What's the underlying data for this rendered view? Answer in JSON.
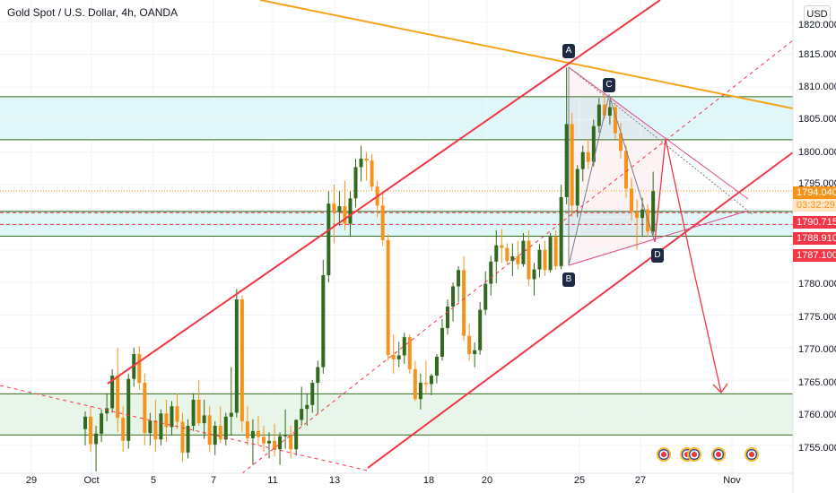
{
  "header": {
    "title": "Gold Spot / U.S. Dollar, 4h, OANDA",
    "currency_button": "USD"
  },
  "price_axis": {
    "ticks": [
      "1820.000",
      "1815.000",
      "1810.000",
      "1805.000",
      "1800.000",
      "1795.000",
      "1780.000",
      "1775.000",
      "1770.000",
      "1765.000",
      "1760.000",
      "1755.000"
    ]
  },
  "price_labels": {
    "last_price": "1794.040",
    "countdown": "03:32:29",
    "level_1": "1790.715",
    "level_2": "1788.910",
    "level_3": "1787.100"
  },
  "time_axis": {
    "ticks": [
      "29",
      "Oct",
      "5",
      "7",
      "11",
      "13",
      "18",
      "20",
      "25",
      "27",
      "Nov"
    ]
  },
  "pattern_points": [
    "A",
    "B",
    "C",
    "D"
  ],
  "colors": {
    "up": "#33691e",
    "down": "#f7931a",
    "red_line": "#f23645",
    "orange_line": "#f7a21b",
    "zone_green": "#e8f5e9",
    "zone_cyan": "#e0f7fa",
    "level_line": "#33691e"
  },
  "icons": [
    "us-flag-event-icon",
    "us-flag-event-icon",
    "us-flag-event-icon",
    "us-flag-event-icon",
    "us-flag-event-icon"
  ],
  "chart_data": {
    "type": "candlestick",
    "symbol": "Gold Spot / U.S. Dollar, 4h, OANDA",
    "ylim": [
      1753,
      1822
    ],
    "candles": [
      [
        1757.5,
        1760.2,
        1755.0,
        1759.4
      ],
      [
        1759.4,
        1761.0,
        1754.0,
        1755.2
      ],
      [
        1755.2,
        1758.0,
        1751.0,
        1756.8
      ],
      [
        1756.8,
        1760.5,
        1755.5,
        1759.9
      ],
      [
        1759.9,
        1763.0,
        1758.7,
        1760.7
      ],
      [
        1760.7,
        1766.7,
        1760.0,
        1765.7
      ],
      [
        1765.7,
        1770.0,
        1757.0,
        1759.2
      ],
      [
        1759.2,
        1761.0,
        1754.0,
        1755.7
      ],
      [
        1755.7,
        1766.0,
        1754.5,
        1765.2
      ],
      [
        1765.2,
        1770.0,
        1764.0,
        1769.0
      ],
      [
        1769.0,
        1770.2,
        1763.5,
        1764.6
      ],
      [
        1764.6,
        1766.0,
        1755.0,
        1756.9
      ],
      [
        1756.9,
        1760.0,
        1755.0,
        1758.8
      ],
      [
        1758.8,
        1762.0,
        1754.0,
        1755.9
      ],
      [
        1755.9,
        1760.5,
        1755.0,
        1759.9
      ],
      [
        1759.9,
        1762.0,
        1755.5,
        1757.8
      ],
      [
        1757.8,
        1761.8,
        1756.5,
        1761.0
      ],
      [
        1761.0,
        1763.0,
        1757.5,
        1758.6
      ],
      [
        1758.6,
        1760.0,
        1752.5,
        1753.9
      ],
      [
        1753.9,
        1759.0,
        1753.0,
        1758.0
      ],
      [
        1758.0,
        1763.0,
        1757.2,
        1762.0
      ],
      [
        1762.0,
        1765.0,
        1758.0,
        1758.4
      ],
      [
        1758.4,
        1762.0,
        1756.0,
        1759.6
      ],
      [
        1759.6,
        1761.0,
        1754.0,
        1755.1
      ],
      [
        1755.1,
        1758.7,
        1753.5,
        1758.0
      ],
      [
        1758.0,
        1761.0,
        1755.3,
        1755.9
      ],
      [
        1755.9,
        1760.0,
        1755.0,
        1759.4
      ],
      [
        1759.4,
        1767.0,
        1756.5,
        1760.0
      ],
      [
        1760.0,
        1779.0,
        1759.3,
        1777.4
      ],
      [
        1777.4,
        1778.0,
        1757.0,
        1758.7
      ],
      [
        1758.7,
        1761.0,
        1755.0,
        1756.1
      ],
      [
        1756.1,
        1759.0,
        1752.0,
        1757.2
      ],
      [
        1757.2,
        1759.5,
        1755.0,
        1756.3
      ],
      [
        1756.3,
        1758.0,
        1754.0,
        1755.3
      ],
      [
        1755.3,
        1757.0,
        1753.0,
        1755.7
      ],
      [
        1755.7,
        1758.3,
        1753.3,
        1754.4
      ],
      [
        1754.4,
        1757.0,
        1752.0,
        1756.4
      ],
      [
        1756.4,
        1760.5,
        1754.5,
        1756.6
      ],
      [
        1756.6,
        1758.0,
        1753.0,
        1754.4
      ],
      [
        1754.4,
        1759.0,
        1753.4,
        1758.9
      ],
      [
        1758.9,
        1764.0,
        1758.0,
        1760.6
      ],
      [
        1760.6,
        1763.0,
        1758.0,
        1761.2
      ],
      [
        1761.2,
        1765.0,
        1760.0,
        1764.6
      ],
      [
        1764.6,
        1768.0,
        1759.8,
        1767.0
      ],
      [
        1767.0,
        1783.5,
        1766.0,
        1781.1
      ],
      [
        1781.1,
        1794.0,
        1780.0,
        1792.1
      ],
      [
        1792.1,
        1795.0,
        1786.0,
        1790.8
      ],
      [
        1790.8,
        1794.0,
        1788.7,
        1791.7
      ],
      [
        1791.7,
        1795.6,
        1788.0,
        1789.0
      ],
      [
        1789.0,
        1794.0,
        1787.0,
        1792.9
      ],
      [
        1792.9,
        1799.0,
        1791.5,
        1797.7
      ],
      [
        1797.7,
        1801.0,
        1795.5,
        1799.0
      ],
      [
        1799.0,
        1800.0,
        1795.6,
        1798.7
      ],
      [
        1798.7,
        1799.7,
        1794.0,
        1794.7
      ],
      [
        1794.7,
        1795.6,
        1790.0,
        1791.8
      ],
      [
        1791.8,
        1793.6,
        1785.6,
        1786.5
      ],
      [
        1786.5,
        1787.4,
        1768.0,
        1768.9
      ],
      [
        1768.9,
        1772.0,
        1766.0,
        1768.2
      ],
      [
        1768.2,
        1770.9,
        1767.0,
        1768.8
      ],
      [
        1768.8,
        1772.3,
        1767.5,
        1771.6
      ],
      [
        1771.6,
        1772.0,
        1766.0,
        1766.7
      ],
      [
        1766.7,
        1768.0,
        1761.8,
        1762.1
      ],
      [
        1762.1,
        1766.0,
        1760.5,
        1764.6
      ],
      [
        1764.6,
        1768.0,
        1763.0,
        1764.4
      ],
      [
        1764.4,
        1766.0,
        1762.7,
        1765.7
      ],
      [
        1765.7,
        1769.0,
        1764.5,
        1768.6
      ],
      [
        1768.6,
        1774.4,
        1768.0,
        1773.0
      ],
      [
        1773.0,
        1777.4,
        1772.0,
        1776.3
      ],
      [
        1776.3,
        1780.0,
        1774.0,
        1779.4
      ],
      [
        1779.4,
        1782.5,
        1777.0,
        1781.9
      ],
      [
        1781.9,
        1784.0,
        1771.0,
        1771.8
      ],
      [
        1771.8,
        1773.6,
        1768.0,
        1769.0
      ],
      [
        1769.0,
        1770.8,
        1767.0,
        1769.6
      ],
      [
        1769.6,
        1777.0,
        1768.9,
        1775.8
      ],
      [
        1775.8,
        1781.7,
        1775.0,
        1779.8
      ],
      [
        1779.8,
        1784.1,
        1778.0,
        1783.2
      ],
      [
        1783.2,
        1788.0,
        1779.9,
        1785.7
      ],
      [
        1785.7,
        1788.2,
        1783.0,
        1785.3
      ],
      [
        1785.3,
        1786.0,
        1782.7,
        1783.3
      ],
      [
        1783.3,
        1786.0,
        1781.0,
        1784.0
      ],
      [
        1784.0,
        1786.4,
        1782.0,
        1782.8
      ],
      [
        1782.8,
        1787.6,
        1782.4,
        1786.4
      ],
      [
        1786.4,
        1788.0,
        1779.5,
        1780.5
      ],
      [
        1780.5,
        1783.0,
        1778.0,
        1782.0
      ],
      [
        1782.0,
        1785.9,
        1780.8,
        1785.0
      ],
      [
        1785.0,
        1786.4,
        1781.0,
        1781.9
      ],
      [
        1781.9,
        1787.6,
        1781.5,
        1787.0
      ],
      [
        1787.0,
        1788.0,
        1782.0,
        1782.5
      ],
      [
        1782.5,
        1795.0,
        1782.0,
        1793.1
      ],
      [
        1793.1,
        1813.0,
        1792.0,
        1804.3
      ],
      [
        1804.3,
        1806.0,
        1790.0,
        1791.8
      ],
      [
        1791.8,
        1798.0,
        1790.0,
        1797.4
      ],
      [
        1797.4,
        1801.0,
        1795.5,
        1800.0
      ],
      [
        1800.0,
        1802.0,
        1797.4,
        1798.5
      ],
      [
        1798.5,
        1805.0,
        1797.8,
        1804.0
      ],
      [
        1804.0,
        1808.3,
        1803.0,
        1807.3
      ],
      [
        1807.3,
        1809.0,
        1805.0,
        1805.6
      ],
      [
        1805.6,
        1808.0,
        1804.2,
        1806.9
      ],
      [
        1806.9,
        1807.5,
        1802.0,
        1802.9
      ],
      [
        1802.9,
        1804.5,
        1799.0,
        1800.2
      ],
      [
        1800.2,
        1801.0,
        1793.0,
        1794.4
      ],
      [
        1794.4,
        1796.0,
        1789.5,
        1790.8
      ],
      [
        1790.8,
        1792.7,
        1785.0,
        1789.9
      ],
      [
        1789.9,
        1793.0,
        1787.0,
        1791.2
      ],
      [
        1791.2,
        1792.0,
        1787.0,
        1787.8
      ],
      [
        1787.8,
        1797.0,
        1787.3,
        1794.0
      ]
    ]
  }
}
